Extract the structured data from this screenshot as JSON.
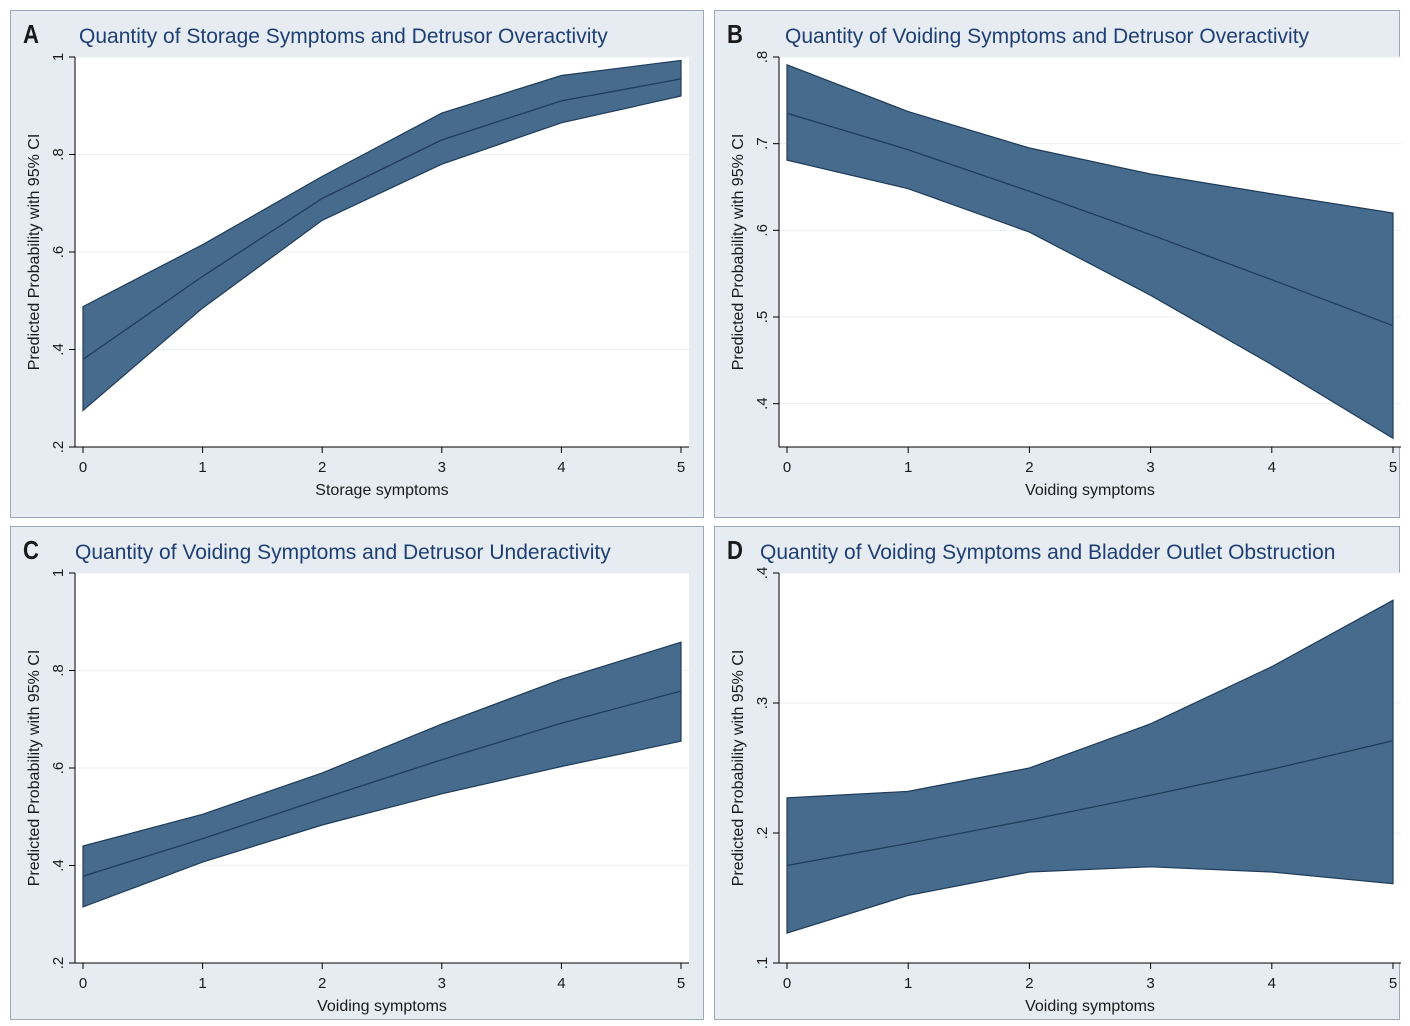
{
  "colors": {
    "band_fill": "#476b8c",
    "band_edge": "#1f3c5a",
    "plot_bg": "#ffffff",
    "panel_bg": "#e6ecf2",
    "grid": "#e9eef3",
    "title": "#1f3f74"
  },
  "chart_data": [
    {
      "panel": "A",
      "type": "area",
      "title": "Quantity of Storage Symptoms and Detrusor Overactivity",
      "xlabel": "Storage symptoms",
      "ylabel": "Predicted Probability with 95% CI",
      "x": [
        0,
        1,
        2,
        3,
        4,
        5
      ],
      "xticks": [
        "0",
        "1",
        "2",
        "3",
        "4",
        "5"
      ],
      "xlim": [
        0,
        5
      ],
      "ylim": [
        0.2,
        1.0
      ],
      "yticks": [
        0.2,
        0.4,
        0.6,
        0.8,
        1.0
      ],
      "yticklabels": [
        ".2",
        ".4",
        ".6",
        ".8",
        "1"
      ],
      "grid": true,
      "series": [
        {
          "estimate": [
            0.38,
            0.55,
            0.71,
            0.83,
            0.91,
            0.955
          ],
          "lower": [
            0.275,
            0.485,
            0.665,
            0.78,
            0.865,
            0.92
          ],
          "upper": [
            0.488,
            0.615,
            0.755,
            0.885,
            0.962,
            0.993
          ]
        }
      ]
    },
    {
      "panel": "B",
      "type": "area",
      "title": "Quantity of Voiding Symptoms and  Detrusor Overactivity",
      "xlabel": "Voiding symptoms",
      "ylabel": "Predicted Probability with 95% CI",
      "x": [
        0,
        1,
        2,
        3,
        4,
        5
      ],
      "xticks": [
        "0",
        "1",
        "2",
        "3",
        "4",
        "5"
      ],
      "xlim": [
        0,
        5
      ],
      "ylim": [
        0.35,
        0.8
      ],
      "yticks": [
        0.4,
        0.5,
        0.6,
        0.7,
        0.8
      ],
      "yticklabels": [
        ".4",
        ".5",
        ".6",
        ".7",
        ".8"
      ],
      "grid": true,
      "series": [
        {
          "estimate": [
            0.735,
            0.693,
            0.645,
            0.595,
            0.543,
            0.49
          ],
          "lower": [
            0.681,
            0.648,
            0.598,
            0.525,
            0.445,
            0.36
          ],
          "upper": [
            0.791,
            0.737,
            0.695,
            0.665,
            0.642,
            0.62
          ]
        }
      ]
    },
    {
      "panel": "C",
      "type": "area",
      "title": "Quantity of Voiding Symptoms and Detrusor Underactivity",
      "xlabel": "Voiding symptoms",
      "ylabel": "Predicted Probability with 95% CI",
      "x": [
        0,
        1,
        2,
        3,
        4,
        5
      ],
      "xticks": [
        "0",
        "1",
        "2",
        "3",
        "4",
        "5"
      ],
      "xlim": [
        0,
        5
      ],
      "ylim": [
        0.2,
        1.0
      ],
      "yticks": [
        0.2,
        0.4,
        0.6,
        0.8,
        1.0
      ],
      "yticklabels": [
        ".2",
        ".4",
        ".6",
        ".8",
        "1"
      ],
      "grid": true,
      "series": [
        {
          "estimate": [
            0.378,
            0.455,
            0.537,
            0.617,
            0.692,
            0.758
          ],
          "lower": [
            0.315,
            0.407,
            0.483,
            0.547,
            0.603,
            0.655
          ],
          "upper": [
            0.44,
            0.505,
            0.59,
            0.69,
            0.782,
            0.858
          ]
        }
      ]
    },
    {
      "panel": "D",
      "type": "area",
      "title": "Quantity of Voiding Symptoms and Bladder Outlet Obstruction",
      "xlabel": "Voiding symptoms",
      "ylabel": "Predicted Probability with 95% CI",
      "x": [
        0,
        1,
        2,
        3,
        4,
        5
      ],
      "xticks": [
        "0",
        "1",
        "2",
        "3",
        "4",
        "5"
      ],
      "xlim": [
        0,
        5
      ],
      "ylim": [
        0.1,
        0.4
      ],
      "yticks": [
        0.1,
        0.2,
        0.3,
        0.4
      ],
      "yticklabels": [
        ".1",
        ".2",
        ".3",
        ".4"
      ],
      "grid": true,
      "series": [
        {
          "estimate": [
            0.175,
            0.192,
            0.21,
            0.229,
            0.249,
            0.271
          ],
          "lower": [
            0.123,
            0.152,
            0.17,
            0.174,
            0.17,
            0.161
          ],
          "upper": [
            0.227,
            0.232,
            0.25,
            0.284,
            0.328,
            0.379
          ]
        }
      ]
    }
  ]
}
